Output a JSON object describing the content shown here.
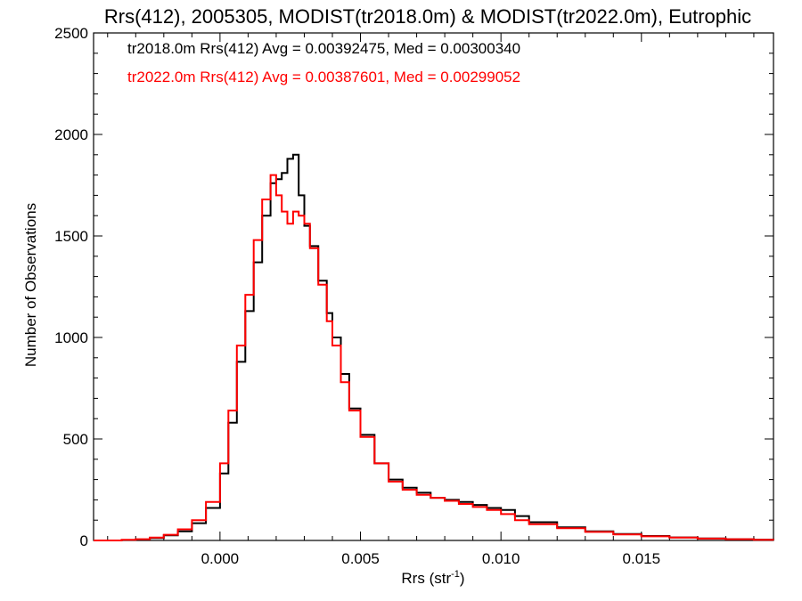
{
  "chart_data": {
    "type": "line",
    "title": "Rrs(412), 2005305, MODIST(tr2018.0m) & MODIST(tr2022.0m), Eutrophic",
    "xlabel": "Rrs (str",
    "xlabel_sup": "-1",
    "xlabel_close": ")",
    "ylabel": "Number of Observations",
    "xlim": [
      -0.0045,
      0.0197
    ],
    "ylim": [
      0,
      2500
    ],
    "xticks": [
      0.0,
      0.005,
      0.01,
      0.015
    ],
    "xtick_labels": [
      "0.000",
      "0.005",
      "0.010",
      "0.015"
    ],
    "yticks": [
      0,
      500,
      1000,
      1500,
      2000,
      2500
    ],
    "ytick_labels": [
      "0",
      "500",
      "1000",
      "1500",
      "2000",
      "2500"
    ],
    "grid": false,
    "legend_placement": "top-left",
    "series": [
      {
        "name": "tr2018.0m",
        "stats_label": "tr2018.0m Rrs(412) Avg = 0.00392475, Med = 0.00300340",
        "color": "#000000",
        "x": [
          -0.0045,
          -0.004,
          -0.0035,
          -0.003,
          -0.0025,
          -0.002,
          -0.0015,
          -0.001,
          -0.0005,
          0.0,
          0.0003,
          0.0006,
          0.0009,
          0.0012,
          0.0015,
          0.0018,
          0.002,
          0.0022,
          0.0024,
          0.0026,
          0.0028,
          0.003,
          0.0032,
          0.0035,
          0.0038,
          0.004,
          0.0043,
          0.0046,
          0.005,
          0.0055,
          0.006,
          0.0065,
          0.007,
          0.0075,
          0.008,
          0.0085,
          0.009,
          0.0095,
          0.01,
          0.0105,
          0.011,
          0.012,
          0.013,
          0.014,
          0.015,
          0.016,
          0.017,
          0.018,
          0.019,
          0.0197
        ],
        "y": [
          0,
          0,
          2,
          5,
          12,
          25,
          45,
          85,
          160,
          330,
          580,
          880,
          1130,
          1370,
          1600,
          1760,
          1780,
          1810,
          1880,
          1900,
          1700,
          1550,
          1450,
          1280,
          1120,
          1000,
          820,
          650,
          520,
          380,
          300,
          260,
          235,
          210,
          200,
          190,
          175,
          160,
          150,
          120,
          90,
          65,
          45,
          32,
          22,
          15,
          10,
          6,
          4,
          2
        ]
      },
      {
        "name": "tr2022.0m",
        "stats_label": "tr2022.0m Rrs(412) Avg = 0.00387601, Med = 0.00299052",
        "color": "#ff0000",
        "x": [
          -0.0045,
          -0.004,
          -0.0035,
          -0.003,
          -0.0025,
          -0.002,
          -0.0015,
          -0.001,
          -0.0005,
          0.0,
          0.0003,
          0.0006,
          0.0009,
          0.0012,
          0.0015,
          0.0018,
          0.002,
          0.0022,
          0.0024,
          0.0026,
          0.0028,
          0.003,
          0.0032,
          0.0035,
          0.0038,
          0.004,
          0.0043,
          0.0046,
          0.005,
          0.0055,
          0.006,
          0.0065,
          0.007,
          0.0075,
          0.008,
          0.0085,
          0.009,
          0.0095,
          0.01,
          0.0105,
          0.011,
          0.012,
          0.013,
          0.014,
          0.015,
          0.016,
          0.017,
          0.018,
          0.019,
          0.0197
        ],
        "y": [
          0,
          0,
          3,
          6,
          14,
          28,
          55,
          100,
          190,
          380,
          640,
          960,
          1210,
          1480,
          1680,
          1800,
          1700,
          1620,
          1560,
          1620,
          1600,
          1560,
          1440,
          1260,
          1080,
          960,
          780,
          640,
          510,
          380,
          290,
          250,
          225,
          210,
          195,
          180,
          165,
          150,
          130,
          100,
          80,
          60,
          42,
          30,
          20,
          14,
          9,
          6,
          3,
          2
        ]
      }
    ]
  }
}
